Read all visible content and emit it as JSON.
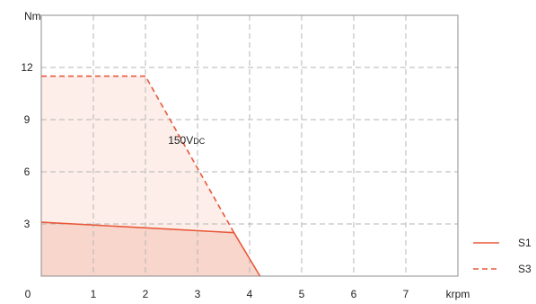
{
  "chart_data": {
    "type": "line",
    "xlabel": "krpm",
    "ylabel": "Nm",
    "xlim": [
      0,
      8
    ],
    "ylim": [
      0,
      15
    ],
    "x_ticks": [
      1,
      2,
      3,
      4,
      5,
      6,
      7
    ],
    "y_ticks": [
      3,
      6,
      9,
      12
    ],
    "origin_label": "0",
    "grid": true,
    "annotation": {
      "text": "150VDC",
      "x": 2.4,
      "y": 7.6
    },
    "legend_position": "bottom-right",
    "series": [
      {
        "name": "S1",
        "style": "solid",
        "color": "#e8593a",
        "fill": "#f8d6cc",
        "x": [
          0,
          3.7,
          4.2
        ],
        "y": [
          3.1,
          2.5,
          0
        ]
      },
      {
        "name": "S3",
        "style": "dashed",
        "color": "#e8593a",
        "fill": "#fdeee9",
        "x": [
          0,
          2.0,
          3.7
        ],
        "y": [
          11.5,
          11.5,
          2.5
        ]
      }
    ]
  }
}
